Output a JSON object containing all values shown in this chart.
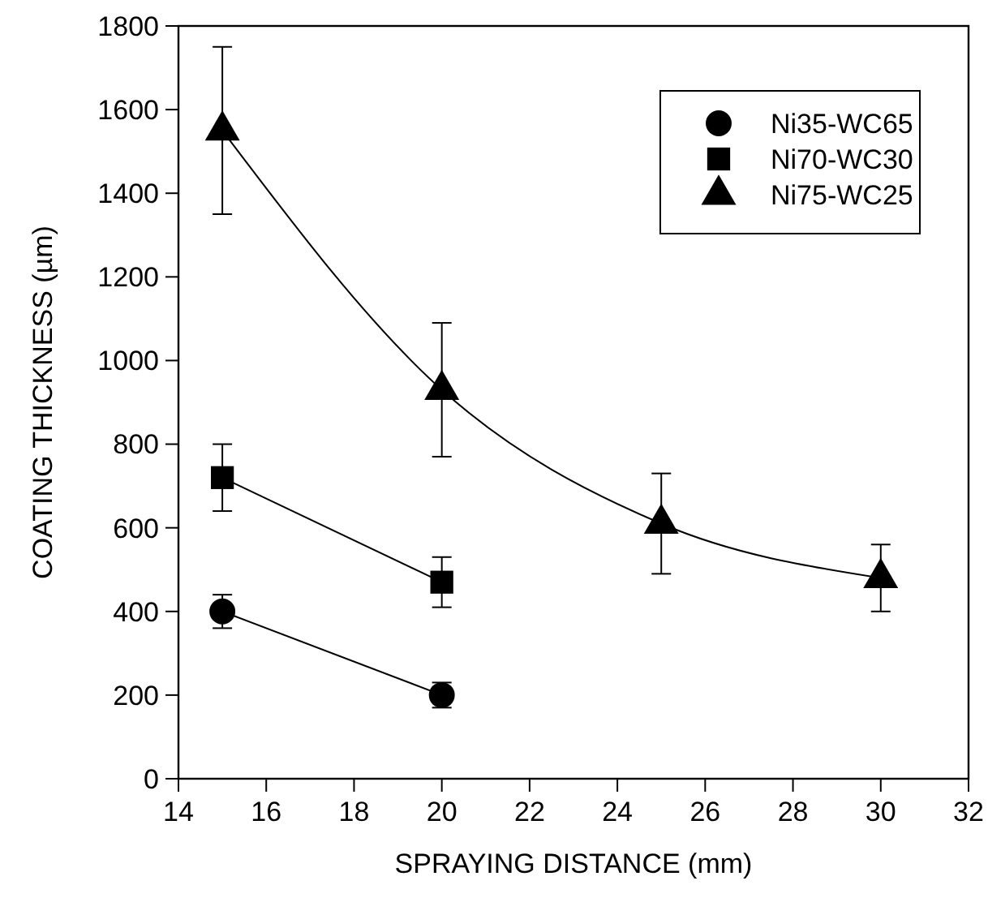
{
  "chart_data": {
    "type": "line",
    "xlabel": "SPRAYING  DISTANCE (mm)",
    "ylabel": "COATING THICKNESS (µm)",
    "xlim": [
      14,
      32
    ],
    "xticks": [
      14,
      16,
      18,
      20,
      22,
      24,
      26,
      28,
      30,
      32
    ],
    "ylim": [
      0,
      1800
    ],
    "yticks": [
      0,
      200,
      400,
      600,
      800,
      1000,
      1200,
      1400,
      1600,
      1800
    ],
    "grid": false,
    "legend": "top right",
    "line_style": "solid",
    "series": [
      {
        "name": "Ni35-WC65",
        "color": "#000000",
        "marker": "circle",
        "x": [
          15,
          20
        ],
        "values": [
          400,
          200
        ],
        "errors": [
          40,
          30
        ]
      },
      {
        "name": "Ni70-WC30",
        "color": "#000000",
        "marker": "square",
        "x": [
          15,
          20
        ],
        "values": [
          720,
          470
        ],
        "errors": [
          80,
          60
        ]
      },
      {
        "name": "Ni75-WC25",
        "color": "#000000",
        "marker": "triangle",
        "x": [
          15,
          20,
          25,
          30
        ],
        "values": [
          1550,
          930,
          610,
          480
        ],
        "errors": [
          200,
          [
            770,
            1090
          ],
          120,
          80
        ]
      }
    ]
  }
}
